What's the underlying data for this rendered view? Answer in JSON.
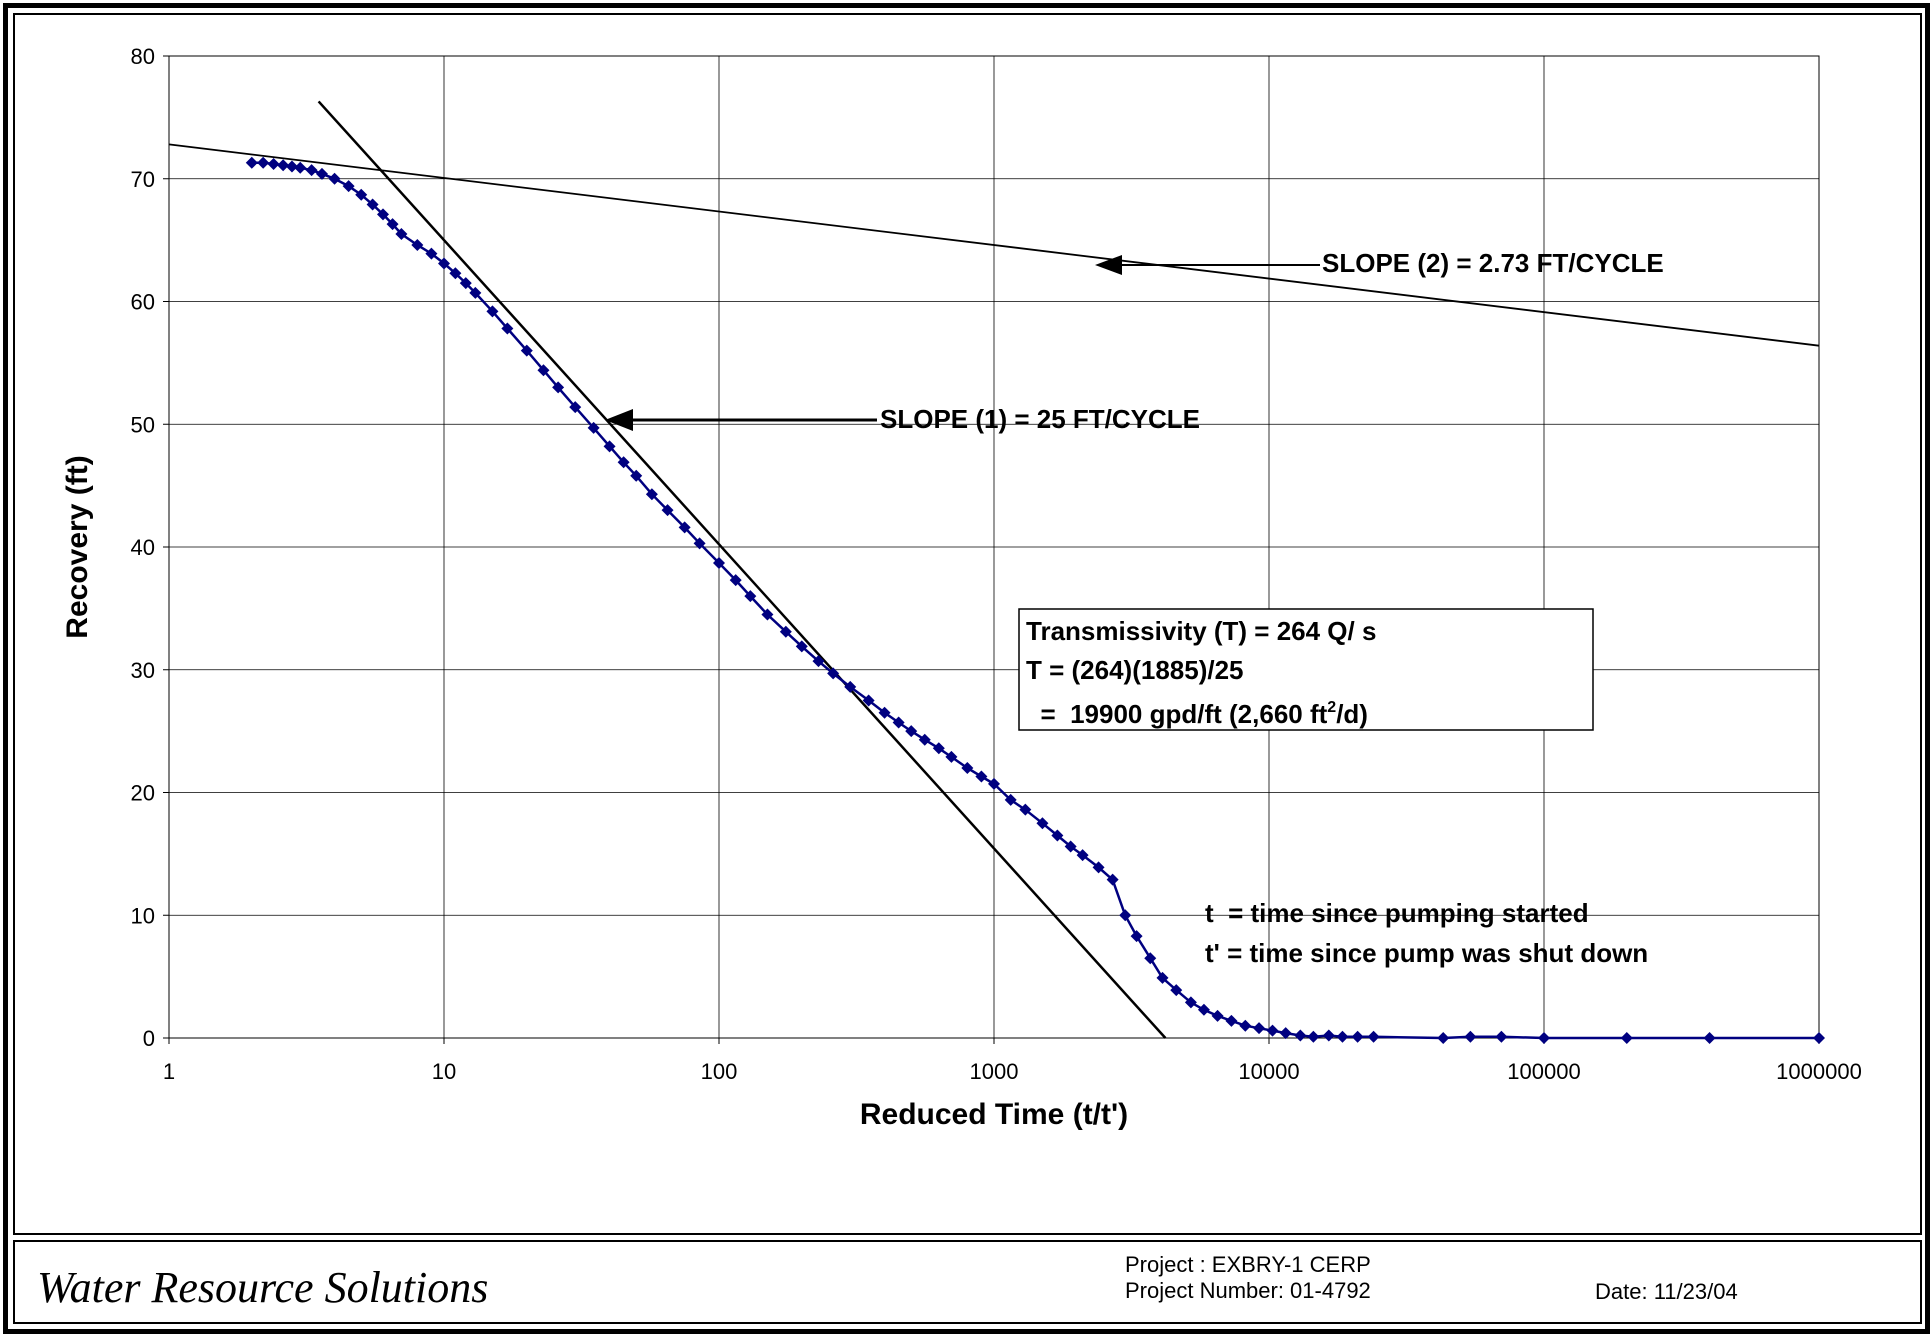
{
  "chart_data": {
    "type": "scatter",
    "x_scale": "log",
    "xlim": [
      1,
      1000000
    ],
    "ylim": [
      0,
      80
    ],
    "xlabel": "Reduced Time (t/t')",
    "ylabel": "Recovery (ft)",
    "grid": true,
    "x_ticks": [
      "1",
      "10",
      "100",
      "1000",
      "10000",
      "100000",
      "1000000"
    ],
    "y_ticks": [
      "0",
      "10",
      "20",
      "30",
      "40",
      "50",
      "60",
      "70",
      "80"
    ],
    "series": [
      {
        "marker": "diamond",
        "color": "#000080",
        "x": [
          2,
          2.2,
          2.4,
          2.6,
          2.8,
          3.0,
          3.3,
          3.6,
          4.0,
          4.5,
          5.0,
          5.5,
          6.0,
          6.5,
          7.0,
          8.0,
          9.0,
          10,
          11,
          12,
          13,
          15,
          17,
          20,
          23,
          26,
          30,
          35,
          40,
          45,
          50,
          57,
          65,
          75,
          85,
          100,
          115,
          130,
          150,
          175,
          200,
          230,
          260,
          300,
          350,
          400,
          450,
          500,
          560,
          630,
          700,
          800,
          900,
          1000,
          1150,
          1300,
          1500,
          1700,
          1900,
          2100,
          2400,
          2700,
          3000,
          3300,
          3700,
          4100,
          4600,
          5200,
          5800,
          6500,
          7300,
          8200,
          9200,
          10300,
          11500,
          13000,
          14500,
          16500,
          18500,
          21000,
          24000,
          43000,
          54000,
          70000,
          100000,
          200000,
          400000,
          1000000
        ],
        "y": [
          71.3,
          71.3,
          71.2,
          71.1,
          71.0,
          70.9,
          70.7,
          70.4,
          70.0,
          69.4,
          68.7,
          67.9,
          67.1,
          66.3,
          65.5,
          64.6,
          63.9,
          63.1,
          62.3,
          61.5,
          60.7,
          59.2,
          57.8,
          56.0,
          54.4,
          53.0,
          51.4,
          49.7,
          48.2,
          46.9,
          45.8,
          44.3,
          43.0,
          41.6,
          40.3,
          38.7,
          37.3,
          36.0,
          34.5,
          33.1,
          31.9,
          30.7,
          29.7,
          28.6,
          27.5,
          26.5,
          25.7,
          25.0,
          24.3,
          23.6,
          22.9,
          22.0,
          21.3,
          20.7,
          19.4,
          18.6,
          17.5,
          16.5,
          15.6,
          14.9,
          13.9,
          12.9,
          10.0,
          8.3,
          6.5,
          4.9,
          3.9,
          2.9,
          2.3,
          1.8,
          1.4,
          1.0,
          0.8,
          0.6,
          0.4,
          0.2,
          0.1,
          0.2,
          0.1,
          0.1,
          0.1,
          0.0,
          0.1,
          0.1,
          0.0,
          0.0,
          0.0,
          0.0
        ]
      }
    ],
    "fit_lines": [
      {
        "label": "SLOPE (1) = 25  FT/CYCLE",
        "x": [
          3.5,
          4200
        ],
        "y": [
          76.3,
          0.0
        ]
      },
      {
        "label": "SLOPE (2) = 2.73  FT/CYCLE",
        "x": [
          1,
          1000000
        ],
        "y": [
          72.8,
          56.4
        ]
      }
    ],
    "annotations": {
      "slope1": "SLOPE (1) = 25  FT/CYCLE",
      "slope2": "SLOPE (2) = 2.73  FT/CYCLE",
      "trans_line1": "Transmissivity (T)  = 264 Q/ s",
      "trans_line2": "T = (264)(1885)/25",
      "trans_line3_pre": "  =  19900 gpd/ft (2,660 ft",
      "trans_line3_sup": "2",
      "trans_line3_post": "/d)",
      "legend_t": "t  = time since pumping started",
      "legend_tp": "t' = time since pump was shut down"
    }
  },
  "footer": {
    "company": "Water Resource Solutions",
    "project": "Project : EXBRY-1 CERP",
    "project_number": "Project Number:  01-4792",
    "date": "Date:  11/23/04"
  }
}
